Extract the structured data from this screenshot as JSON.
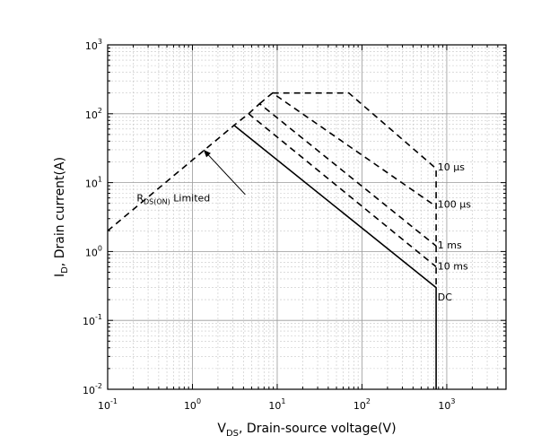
{
  "chart_data": {
    "type": "line",
    "title": "",
    "xlabel": {
      "main": "V",
      "sub": "DS",
      "rest": ", Drain-source voltage(V)"
    },
    "ylabel": {
      "main": "I",
      "sub": "D",
      "rest": ", Drain current(A)"
    },
    "x_scale": "log",
    "y_scale": "log",
    "xlim": [
      0.1,
      5000
    ],
    "ylim": [
      0.01,
      1000
    ],
    "x_ticks": [
      {
        "value": 0.1,
        "base": "10",
        "exp": "-1"
      },
      {
        "value": 1,
        "base": "10",
        "exp": "0"
      },
      {
        "value": 10,
        "base": "10",
        "exp": "1"
      },
      {
        "value": 100,
        "base": "10",
        "exp": "2"
      },
      {
        "value": 1000,
        "base": "10",
        "exp": "3"
      }
    ],
    "y_ticks": [
      {
        "value": 0.01,
        "base": "10",
        "exp": "-2"
      },
      {
        "value": 0.1,
        "base": "10",
        "exp": "-1"
      },
      {
        "value": 1,
        "base": "10",
        "exp": "0"
      },
      {
        "value": 10,
        "base": "10",
        "exp": "1"
      },
      {
        "value": 100,
        "base": "10",
        "exp": "2"
      },
      {
        "value": 1000,
        "base": "10",
        "exp": "3"
      }
    ],
    "grid": true,
    "series": [
      {
        "name": "DC",
        "style": "solid",
        "label_at": [
          780,
          0.22
        ],
        "points": [
          [
            3.1,
            68
          ],
          [
            750,
            0.3
          ],
          [
            750,
            0.01
          ]
        ]
      },
      {
        "name": "10 ms",
        "style": "dashed",
        "label_at": [
          780,
          0.62
        ],
        "points": [
          [
            0.1,
            2
          ],
          [
            3.1,
            68
          ],
          [
            4.6,
            100
          ],
          [
            750,
            0.6
          ]
        ]
      },
      {
        "name": "1 ms",
        "style": "dashed",
        "label_at": [
          780,
          1.25
        ],
        "points": [
          [
            4.6,
            100
          ],
          [
            6.2,
            140
          ],
          [
            750,
            1.2
          ]
        ]
      },
      {
        "name": "100 µs",
        "style": "dashed",
        "label_at": [
          780,
          4.9
        ],
        "points": [
          [
            6.2,
            140
          ],
          [
            8.8,
            200
          ],
          [
            750,
            4.5
          ]
        ]
      },
      {
        "name": "10 µs",
        "style": "dashed",
        "label_at": [
          780,
          17
        ],
        "points": [
          [
            8.8,
            200
          ],
          [
            70,
            200
          ],
          [
            750,
            16
          ],
          [
            750,
            0.3
          ]
        ]
      }
    ],
    "annotations": [
      {
        "main": "R",
        "sub": "DS(ON)",
        "rest": " Limited",
        "text_at": [
          0.22,
          6.0
        ],
        "arrow_from": [
          4.2,
          6.7
        ],
        "arrow_to": [
          1.35,
          30
        ]
      }
    ]
  }
}
